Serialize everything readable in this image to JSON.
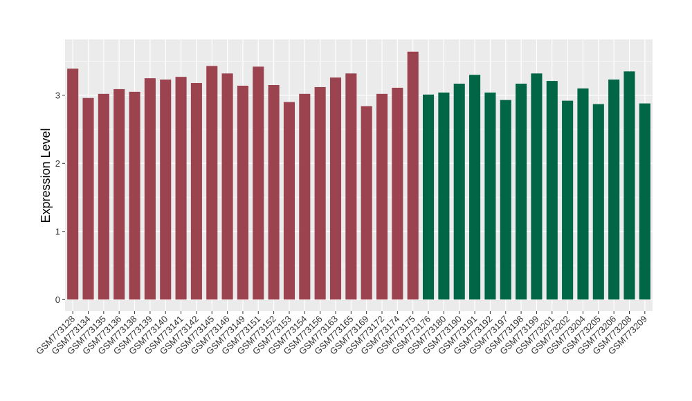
{
  "chart_data": {
    "type": "bar",
    "title": "",
    "xlabel": "",
    "ylabel": "Expression Level",
    "ylim": [
      -0.17,
      3.82
    ],
    "yticks": [
      0,
      1,
      2,
      3
    ],
    "grid": true,
    "background": "#ebebeb",
    "grid_color": "#ffffff",
    "legend": "none",
    "categories": [
      "GSM773128",
      "GSM773134",
      "GSM773135",
      "GSM773136",
      "GSM773138",
      "GSM773139",
      "GSM773140",
      "GSM773141",
      "GSM773142",
      "GSM773145",
      "GSM773146",
      "GSM773149",
      "GSM773151",
      "GSM773152",
      "GSM773153",
      "GSM773154",
      "GSM773156",
      "GSM773163",
      "GSM773165",
      "GSM773169",
      "GSM773172",
      "GSM773174",
      "GSM773175",
      "GSM773176",
      "GSM773180",
      "GSM773190",
      "GSM773191",
      "GSM773192",
      "GSM773197",
      "GSM773198",
      "GSM773199",
      "GSM773201",
      "GSM773202",
      "GSM773204",
      "GSM773205",
      "GSM773206",
      "GSM773208",
      "GSM773209"
    ],
    "values": [
      3.39,
      2.96,
      3.02,
      3.09,
      3.05,
      3.25,
      3.23,
      3.27,
      3.18,
      3.43,
      3.32,
      3.14,
      3.42,
      3.15,
      2.9,
      3.02,
      3.12,
      3.26,
      3.32,
      2.84,
      3.02,
      3.11,
      3.64,
      3.01,
      3.04,
      3.17,
      3.3,
      3.04,
      2.93,
      3.17,
      3.32,
      3.21,
      2.92,
      3.1,
      2.87,
      3.23,
      3.35,
      2.88
    ],
    "group_sizes": [
      23,
      15
    ],
    "group_colors": [
      "#9b4450",
      "#006646"
    ]
  }
}
